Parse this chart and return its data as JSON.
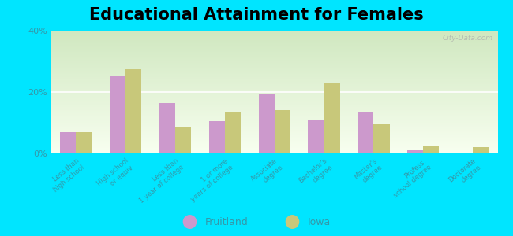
{
  "title": "Educational Attainment for Females",
  "categories": [
    "Less than\nhigh school",
    "High school\nor equiv.",
    "Less than\n1 year of college",
    "1 or more\nyears of college",
    "Associate\ndegree",
    "Bachelor's\ndegree",
    "Master's\ndegree",
    "Profess.\nschool degree",
    "Doctorate\ndegree"
  ],
  "fruitland": [
    7.0,
    25.5,
    16.5,
    10.5,
    19.5,
    11.0,
    13.5,
    1.0,
    0.0
  ],
  "iowa": [
    7.0,
    27.5,
    8.5,
    13.5,
    14.0,
    23.0,
    9.5,
    2.5,
    2.0
  ],
  "fruitland_color": "#cc99cc",
  "iowa_color": "#c8c87a",
  "background_outer": "#00e5ff",
  "bg_top_color": "#d0e8c0",
  "bg_bottom_color": "#f8fff0",
  "ylim": [
    0,
    40
  ],
  "yticks": [
    0,
    20,
    40
  ],
  "ytick_labels": [
    "0%",
    "20%",
    "40%"
  ],
  "title_fontsize": 15,
  "bar_width": 0.32,
  "legend_labels": [
    "Fruitland",
    "Iowa"
  ],
  "tick_label_color": "#3399aa",
  "watermark": "City-Data.com"
}
